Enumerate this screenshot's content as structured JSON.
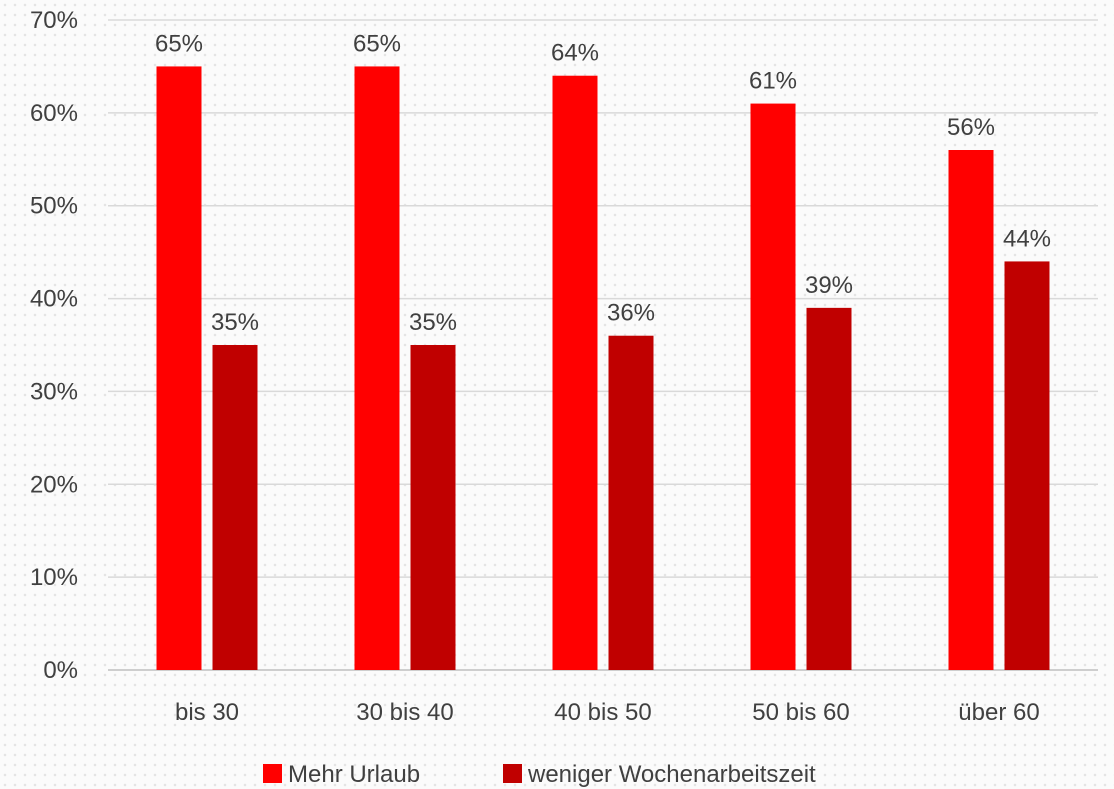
{
  "chart_data": {
    "type": "bar",
    "title": "",
    "xlabel": "",
    "ylabel": "",
    "categories": [
      "bis 30",
      "30 bis 40",
      "40 bis 50",
      "50 bis 60",
      "über 60"
    ],
    "series": [
      {
        "name": "Mehr Urlaub",
        "color": "#ff0000",
        "values": [
          65,
          65,
          64,
          61,
          56
        ]
      },
      {
        "name": "weniger Wochenarbeitszeit",
        "color": "#c00000",
        "values": [
          35,
          35,
          36,
          39,
          44
        ]
      }
    ],
    "ylim": [
      0,
      70
    ],
    "yticks": [
      0,
      10,
      20,
      30,
      40,
      50,
      60,
      70
    ],
    "ytick_labels": [
      "0%",
      "10%",
      "20%",
      "30%",
      "40%",
      "50%",
      "60%",
      "70%"
    ],
    "value_labels": [
      [
        "65%",
        "65%",
        "64%",
        "61%",
        "56%"
      ],
      [
        "35%",
        "35%",
        "36%",
        "39%",
        "44%"
      ]
    ],
    "grid": true,
    "legend_position": "bottom"
  }
}
